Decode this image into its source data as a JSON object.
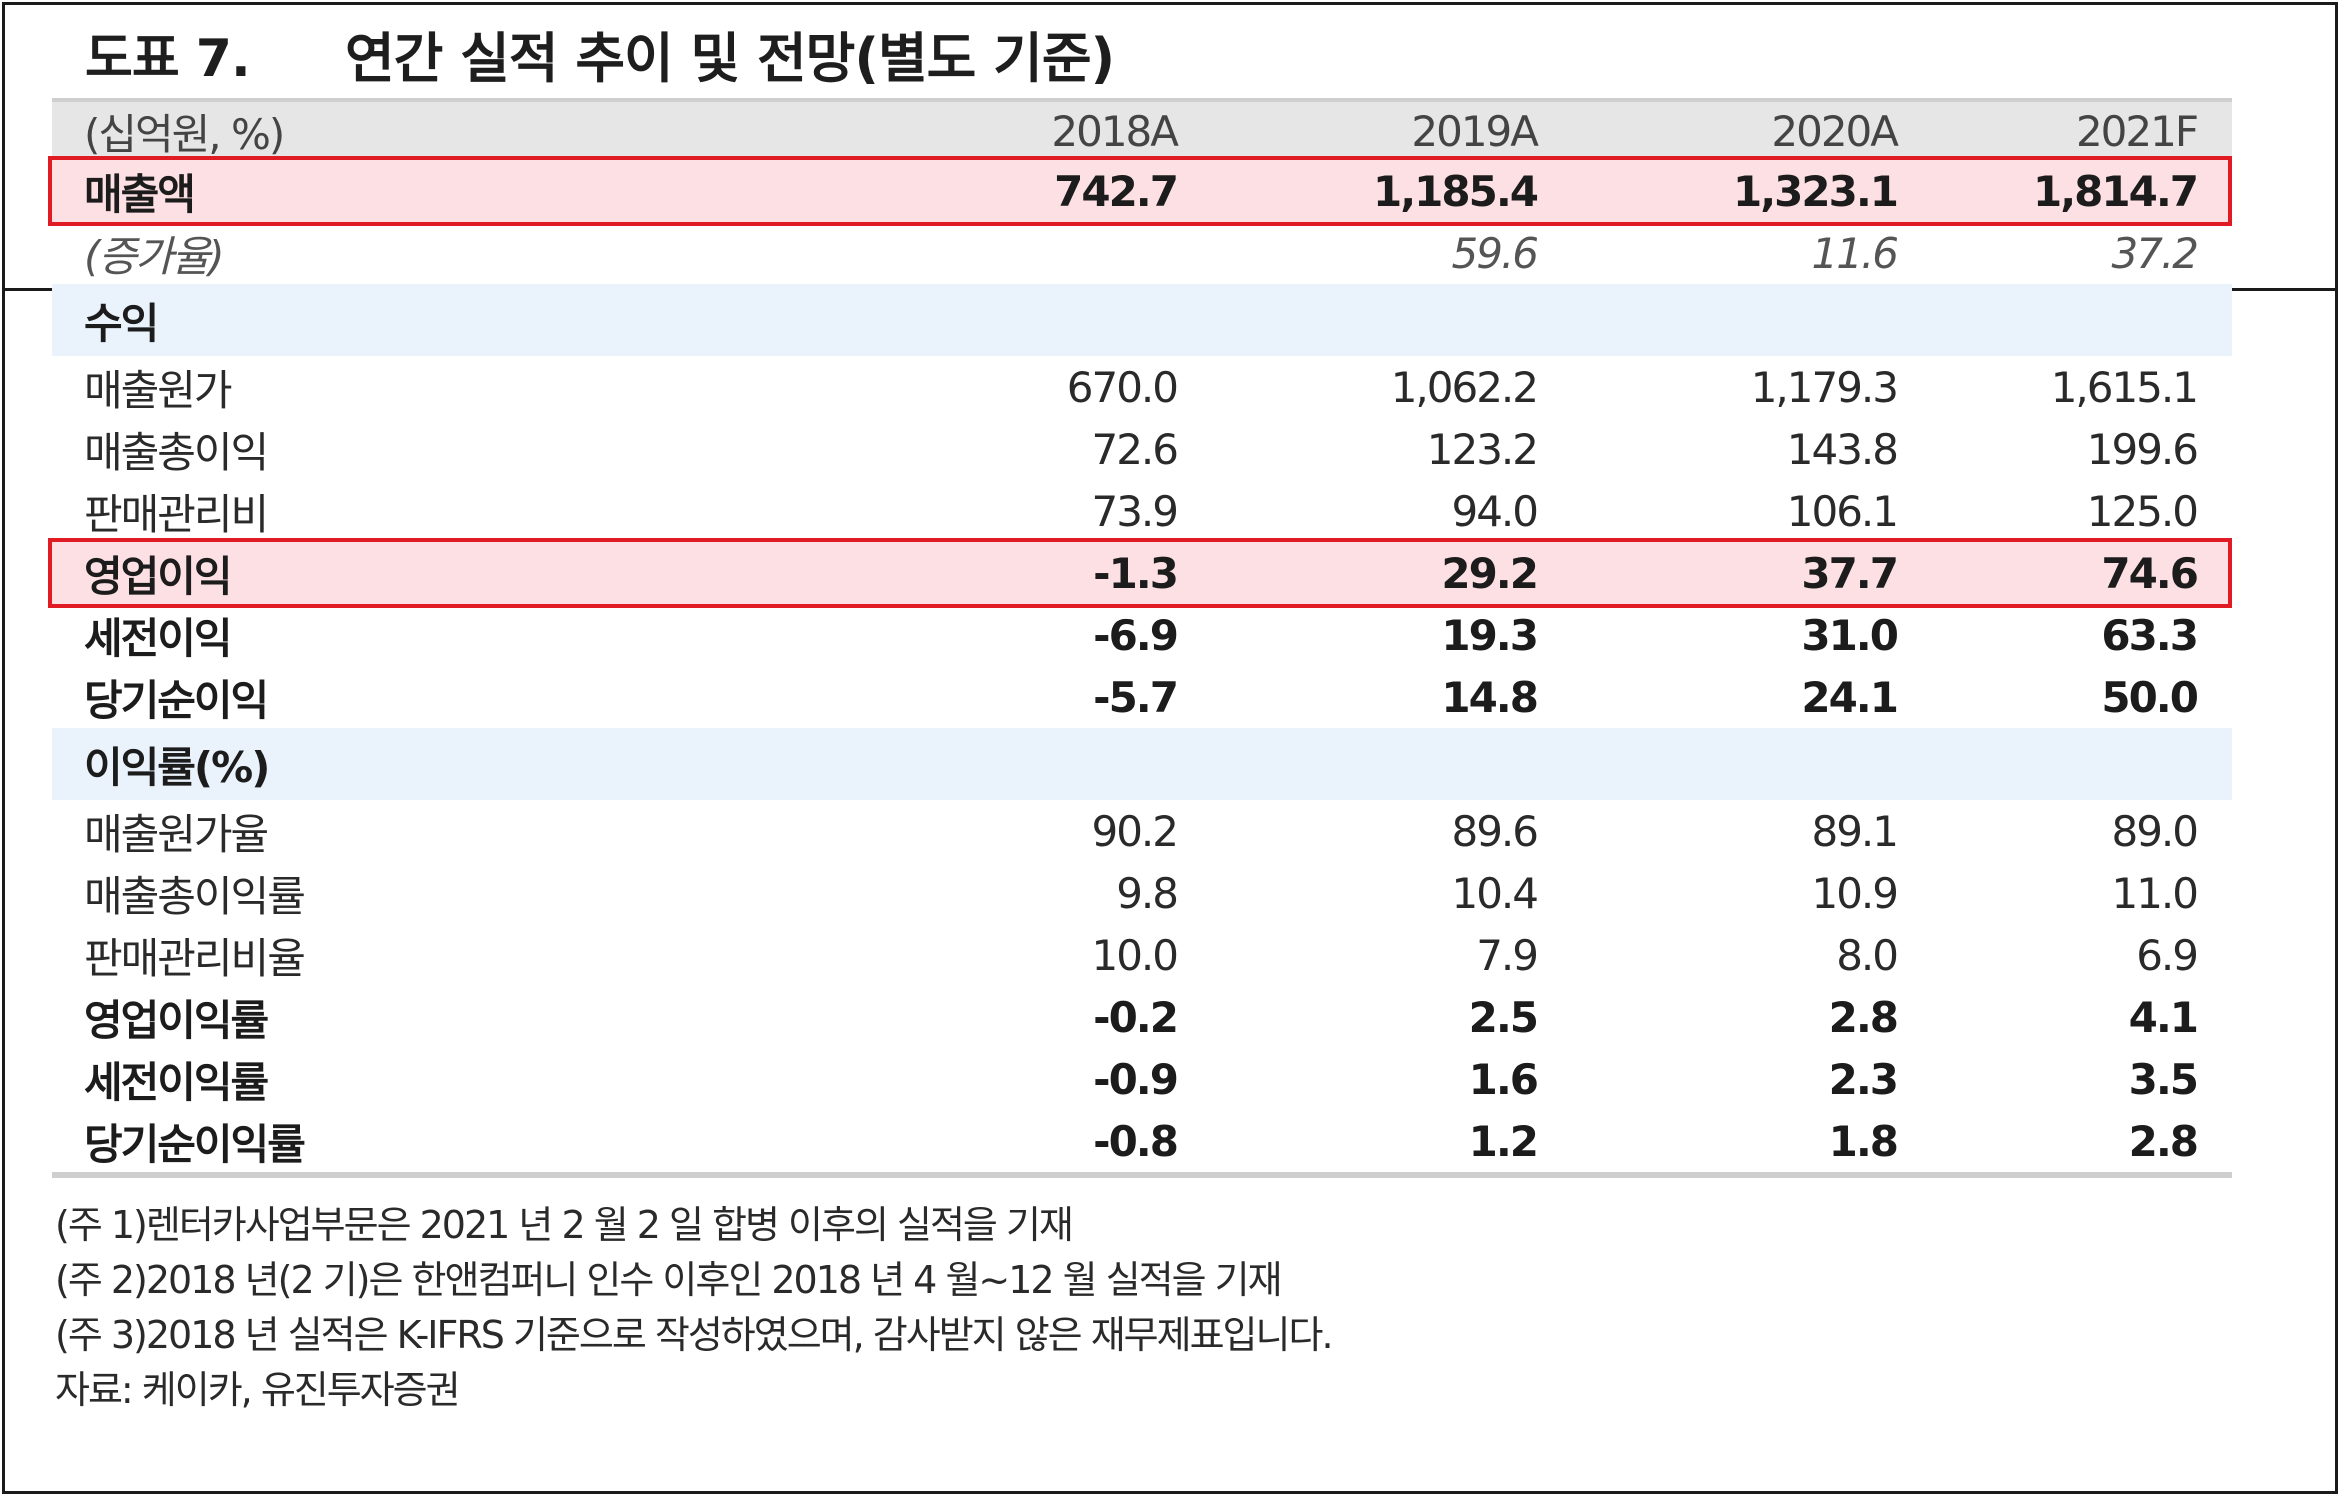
{
  "title": {
    "label": "도표 7.",
    "text": "연간 실적 추이 및 전망(별도 기준)"
  },
  "columns": {
    "unit": "(십억원, %)",
    "years": [
      "2018A",
      "2019A",
      "2020A",
      "2021F"
    ]
  },
  "rows": {
    "revenue": {
      "label": "매출액",
      "values": [
        "742.7",
        "1,185.4",
        "1,323.1",
        "1,814.7"
      ]
    },
    "growth": {
      "label": "(증가율)",
      "values": [
        "",
        "59.6",
        "11.6",
        "37.2"
      ]
    },
    "section_profit": {
      "label": "수익"
    },
    "cogs": {
      "label": "매출원가",
      "values": [
        "670.0",
        "1,062.2",
        "1,179.3",
        "1,615.1"
      ]
    },
    "gross_profit": {
      "label": "매출총이익",
      "values": [
        "72.6",
        "123.2",
        "143.8",
        "199.6"
      ]
    },
    "sga": {
      "label": "판매관리비",
      "values": [
        "73.9",
        "94.0",
        "106.1",
        "125.0"
      ]
    },
    "operating_profit": {
      "label": "영업이익",
      "values": [
        "-1.3",
        "29.2",
        "37.7",
        "74.6"
      ]
    },
    "pretax_profit": {
      "label": "세전이익",
      "values": [
        "-6.9",
        "19.3",
        "31.0",
        "63.3"
      ]
    },
    "net_profit": {
      "label": "당기순이익",
      "values": [
        "-5.7",
        "14.8",
        "24.1",
        "50.0"
      ]
    },
    "section_margin": {
      "label": "이익률(%)"
    },
    "cogs_ratio": {
      "label": "매출원가율",
      "values": [
        "90.2",
        "89.6",
        "89.1",
        "89.0"
      ]
    },
    "gross_margin": {
      "label": "매출총이익률",
      "values": [
        "9.8",
        "10.4",
        "10.9",
        "11.0"
      ]
    },
    "sga_ratio": {
      "label": "판매관리비율",
      "values": [
        "10.0",
        "7.9",
        "8.0",
        "6.9"
      ]
    },
    "operating_margin": {
      "label": "영업이익률",
      "values": [
        "-0.2",
        "2.5",
        "2.8",
        "4.1"
      ]
    },
    "pretax_margin": {
      "label": "세전이익률",
      "values": [
        "-0.9",
        "1.6",
        "2.3",
        "3.5"
      ]
    },
    "net_margin": {
      "label": "당기순이익률",
      "values": [
        "-0.8",
        "1.2",
        "1.8",
        "2.8"
      ]
    }
  },
  "notes": [
    "(주 1)렌터카사업부문은 2021 년 2 월 2 일 합병 이후의 실적을 기재",
    "(주 2)2018 년(2 기)은 한앤컴퍼니 인수 이후인 2018 년 4 월~12 월 실적을 기재",
    "(주 3)2018 년 실적은 K-IFRS 기준으로 작성하였으며, 감사받지 않은 재무제표입니다.",
    "자료: 케이카, 유진투자증권"
  ],
  "colors": {
    "highlight_border": "#e01b24",
    "highlight_fill": "#fde0e4",
    "section_fill": "#eaf3fb",
    "header_fill": "#e6e6e6"
  }
}
